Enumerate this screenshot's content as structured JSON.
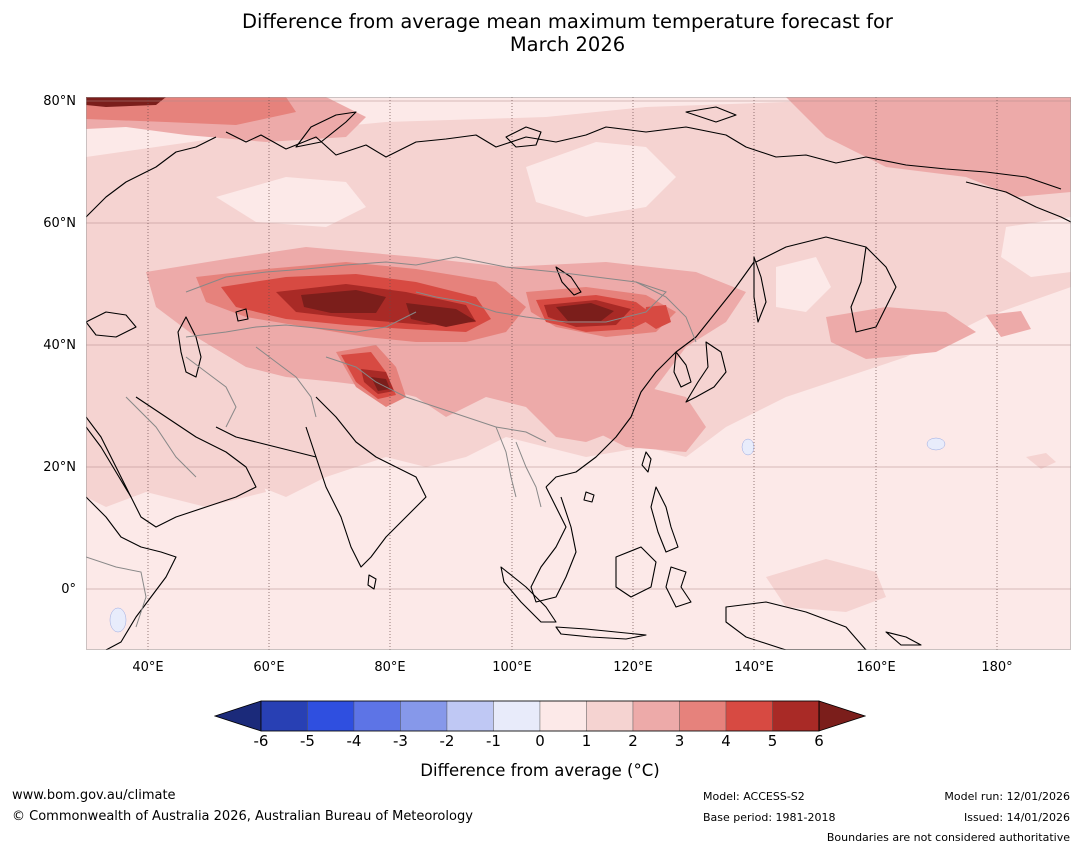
{
  "title": {
    "line1": "Difference from average mean maximum temperature forecast for",
    "line2": "March 2026"
  },
  "map": {
    "lat_labels": [
      "80°N",
      "60°N",
      "40°N",
      "20°N",
      "0°"
    ],
    "lon_labels": [
      "40°E",
      "60°E",
      "80°E",
      "100°E",
      "120°E",
      "140°E",
      "160°E",
      "180°"
    ],
    "colors": {
      "ocean_base": "#fce9e8",
      "level_1_2": "#f5d3d1",
      "level_2_3": "#edaaa9",
      "level_3_4": "#e6827c",
      "level_4_5": "#d74a42",
      "level_5_6": "#a92a26",
      "level_6_plus": "#7b1e1b",
      "cool_patch": "#e8ecfb",
      "coast": "#000000",
      "border": "#888888",
      "grid": "#b08a8a"
    }
  },
  "colorbar": {
    "ticks": [
      "-6",
      "-5",
      "-4",
      "-3",
      "-2",
      "-1",
      "0",
      "1",
      "2",
      "3",
      "4",
      "5",
      "6"
    ],
    "colors": [
      "#1b2a7a",
      "#2840b4",
      "#2f4fe0",
      "#5d74e6",
      "#8698ea",
      "#bfc8f4",
      "#e8ebfa",
      "#fce9e8",
      "#f5d3d1",
      "#edaaa9",
      "#e6827c",
      "#d74a42",
      "#a92a26",
      "#7b1e1b"
    ],
    "label": "Difference from average (°C)"
  },
  "footer": {
    "website": "www.bom.gov.au/climate",
    "copyright": "© Commonwealth of Australia 2026, Australian Bureau of Meteorology",
    "model": "Model: ACCESS-S2",
    "base_period": "Base period: 1981-2018",
    "model_run": "Model run: 12/01/2026",
    "issued": "Issued: 14/01/2026",
    "disclaimer": "Boundaries are not considered authoritative"
  }
}
